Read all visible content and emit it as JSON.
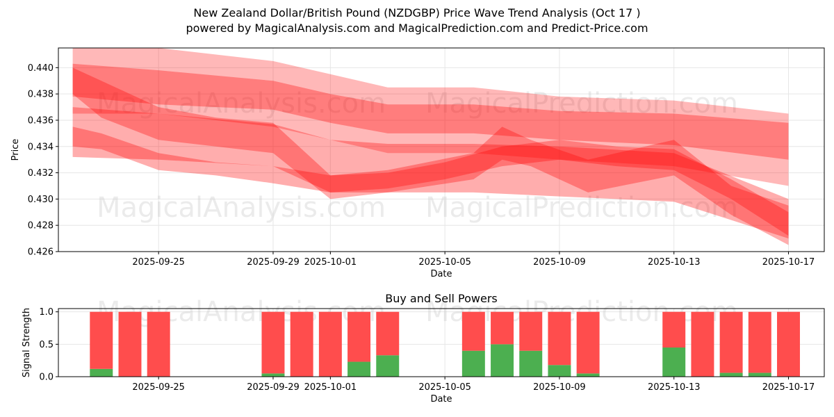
{
  "title": "New Zealand Dollar/British Pound (NZDGBP) Price Wave Trend Analysis (Oct 17 )",
  "subtitle": "powered by MagicalAnalysis.com and MagicalPrediction.com and Predict-Price.com",
  "watermarks": [
    "MagicalAnalysis.com",
    "MagicalPrediction.com"
  ],
  "colors": {
    "band": "#ff0000",
    "buy": "#4caf50",
    "sell": "#ff4d4d",
    "grid": "#e6e6e6"
  },
  "chart_data": [
    {
      "type": "area",
      "xlabel": "Date",
      "ylabel": "Price",
      "ylim": [
        0.426,
        0.4415
      ],
      "yticks": [
        0.426,
        0.428,
        0.43,
        0.432,
        0.434,
        0.436,
        0.438,
        0.44
      ],
      "ytick_labels": [
        "0.426",
        "0.428",
        "0.430",
        "0.432",
        "0.434",
        "0.436",
        "0.438",
        "0.440"
      ],
      "xlim": [
        "2025-09-21T12:00",
        "2025-10-18T06:00"
      ],
      "xticks": [
        "2025-09-25",
        "2025-09-29",
        "2025-10-01",
        "2025-10-05",
        "2025-10-09",
        "2025-10-13",
        "2025-10-17"
      ],
      "grid": true,
      "bands": [
        {
          "x": [
            "2025-09-22",
            "2025-09-25",
            "2025-09-29",
            "2025-10-01",
            "2025-10-03",
            "2025-10-06",
            "2025-10-09",
            "2025-10-13",
            "2025-10-17"
          ],
          "upper": [
            0.4415,
            0.4415,
            0.4405,
            0.4395,
            0.4385,
            0.4385,
            0.4378,
            0.4375,
            0.4365
          ],
          "lower": [
            0.4365,
            0.4365,
            0.4355,
            0.4345,
            0.4335,
            0.4335,
            0.433,
            0.4325,
            0.431
          ]
        },
        {
          "x": [
            "2025-09-22",
            "2025-09-25",
            "2025-09-29",
            "2025-10-01",
            "2025-10-03",
            "2025-10-06",
            "2025-10-09",
            "2025-10-13",
            "2025-10-17"
          ],
          "upper": [
            0.4403,
            0.4398,
            0.439,
            0.438,
            0.4372,
            0.4372,
            0.4367,
            0.4365,
            0.4358
          ],
          "lower": [
            0.4378,
            0.4372,
            0.4368,
            0.4358,
            0.435,
            0.435,
            0.4345,
            0.4341,
            0.433
          ]
        },
        {
          "x": [
            "2025-09-22",
            "2025-09-25",
            "2025-09-29",
            "2025-10-01",
            "2025-10-03",
            "2025-10-06",
            "2025-10-09",
            "2025-10-13",
            "2025-10-17"
          ],
          "upper": [
            0.437,
            0.4365,
            0.4357,
            0.4345,
            0.4342,
            0.4342,
            0.434,
            0.4335,
            0.43
          ],
          "lower": [
            0.4332,
            0.433,
            0.4325,
            0.4305,
            0.4305,
            0.4305,
            0.4302,
            0.4298,
            0.427
          ]
        },
        {
          "x": [
            "2025-09-22",
            "2025-09-23",
            "2025-09-25",
            "2025-09-27",
            "2025-09-29",
            "2025-10-01",
            "2025-10-03",
            "2025-10-05",
            "2025-10-07",
            "2025-10-09",
            "2025-10-11",
            "2025-10-13",
            "2025-10-15",
            "2025-10-17"
          ],
          "upper": [
            0.4355,
            0.435,
            0.4335,
            0.4328,
            0.4325,
            0.4318,
            0.432,
            0.4328,
            0.434,
            0.4345,
            0.434,
            0.4338,
            0.4315,
            0.429
          ],
          "lower": [
            0.434,
            0.4338,
            0.4322,
            0.4318,
            0.4312,
            0.4305,
            0.4308,
            0.4315,
            0.4325,
            0.433,
            0.4325,
            0.4322,
            0.43,
            0.4272
          ]
        },
        {
          "x": [
            "2025-09-22",
            "2025-09-23",
            "2025-09-25",
            "2025-09-27",
            "2025-09-29",
            "2025-10-01",
            "2025-10-03",
            "2025-10-06",
            "2025-10-07",
            "2025-10-08",
            "2025-10-10",
            "2025-10-13",
            "2025-10-15",
            "2025-10-17"
          ],
          "upper": [
            0.44,
            0.439,
            0.437,
            0.4362,
            0.4358,
            0.4318,
            0.4322,
            0.4335,
            0.4355,
            0.4345,
            0.433,
            0.4345,
            0.431,
            0.4295
          ],
          "lower": [
            0.438,
            0.4362,
            0.4345,
            0.434,
            0.4335,
            0.43,
            0.4305,
            0.4315,
            0.433,
            0.4325,
            0.4305,
            0.4318,
            0.4288,
            0.4265
          ]
        }
      ]
    },
    {
      "type": "bar",
      "title": "Buy and Sell Powers",
      "xlabel": "Date",
      "ylabel": "Signal Strength",
      "ylim": [
        0,
        1.05
      ],
      "yticks": [
        0.0,
        0.5,
        1.0
      ],
      "ytick_labels": [
        "0.0",
        "0.5",
        "1.0"
      ],
      "xlim": [
        "2025-09-21T12:00",
        "2025-10-18T06:00"
      ],
      "xticks": [
        "2025-09-25",
        "2025-09-29",
        "2025-10-01",
        "2025-10-05",
        "2025-10-09",
        "2025-10-13",
        "2025-10-17"
      ],
      "grid": true,
      "dates": [
        "2025-09-23",
        "2025-09-24",
        "2025-09-25",
        "2025-09-29",
        "2025-09-30",
        "2025-10-01",
        "2025-10-02",
        "2025-10-03",
        "2025-10-06",
        "2025-10-07",
        "2025-10-08",
        "2025-10-09",
        "2025-10-10",
        "2025-10-13",
        "2025-10-14",
        "2025-10-15",
        "2025-10-16",
        "2025-10-17"
      ],
      "series": [
        {
          "name": "Buy",
          "values": [
            0.12,
            0.0,
            0.0,
            0.05,
            0.0,
            0.0,
            0.23,
            0.33,
            0.4,
            0.5,
            0.4,
            0.18,
            0.05,
            0.45,
            0.0,
            0.06,
            0.06,
            0.0
          ]
        },
        {
          "name": "Sell",
          "values": [
            0.88,
            1.0,
            1.0,
            0.95,
            1.0,
            1.0,
            0.77,
            0.67,
            0.6,
            0.5,
            0.6,
            0.82,
            0.95,
            0.55,
            1.0,
            0.94,
            0.94,
            1.0
          ]
        }
      ]
    }
  ]
}
